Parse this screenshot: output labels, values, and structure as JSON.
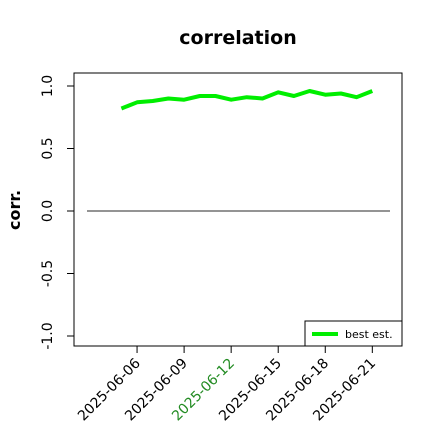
{
  "chart_data": {
    "type": "line",
    "title": "correlation",
    "xlabel": "",
    "ylabel": "corr.",
    "ylim": [
      -1.0,
      1.0
    ],
    "xlim": [
      "2025-06-03",
      "2025-06-22"
    ],
    "yticks": [
      -1.0,
      -0.5,
      0.0,
      0.5,
      1.0
    ],
    "ytick_labels": [
      "-1.0",
      "-0.5",
      "0.0",
      "0.5",
      "1.0"
    ],
    "xticks": [
      "2025-06-06",
      "2025-06-09",
      "2025-06-12",
      "2025-06-15",
      "2025-06-18",
      "2025-06-21"
    ],
    "xtick_labels": [
      "2025-06-06",
      "2025-06-09",
      "2025-06-12",
      "2025-06-15",
      "2025-06-18",
      "2025-06-21"
    ],
    "highlight_tick": "2025-06-12",
    "grid": false,
    "legend_position": "bottom-right",
    "reference_line": 0.0,
    "series": [
      {
        "name": "best est.",
        "color": "#00ee00",
        "x": [
          "2025-06-05",
          "2025-06-06",
          "2025-06-07",
          "2025-06-08",
          "2025-06-09",
          "2025-06-10",
          "2025-06-11",
          "2025-06-12",
          "2025-06-13",
          "2025-06-14",
          "2025-06-15",
          "2025-06-16",
          "2025-06-17",
          "2025-06-18",
          "2025-06-19",
          "2025-06-20",
          "2025-06-21"
        ],
        "y": [
          0.82,
          0.87,
          0.88,
          0.9,
          0.89,
          0.92,
          0.92,
          0.89,
          0.91,
          0.9,
          0.95,
          0.92,
          0.96,
          0.93,
          0.94,
          0.91,
          0.96
        ]
      }
    ],
    "colors": {
      "axis": "#000000",
      "reference_line": "#555555",
      "highlight_tick": "#228b22"
    }
  }
}
